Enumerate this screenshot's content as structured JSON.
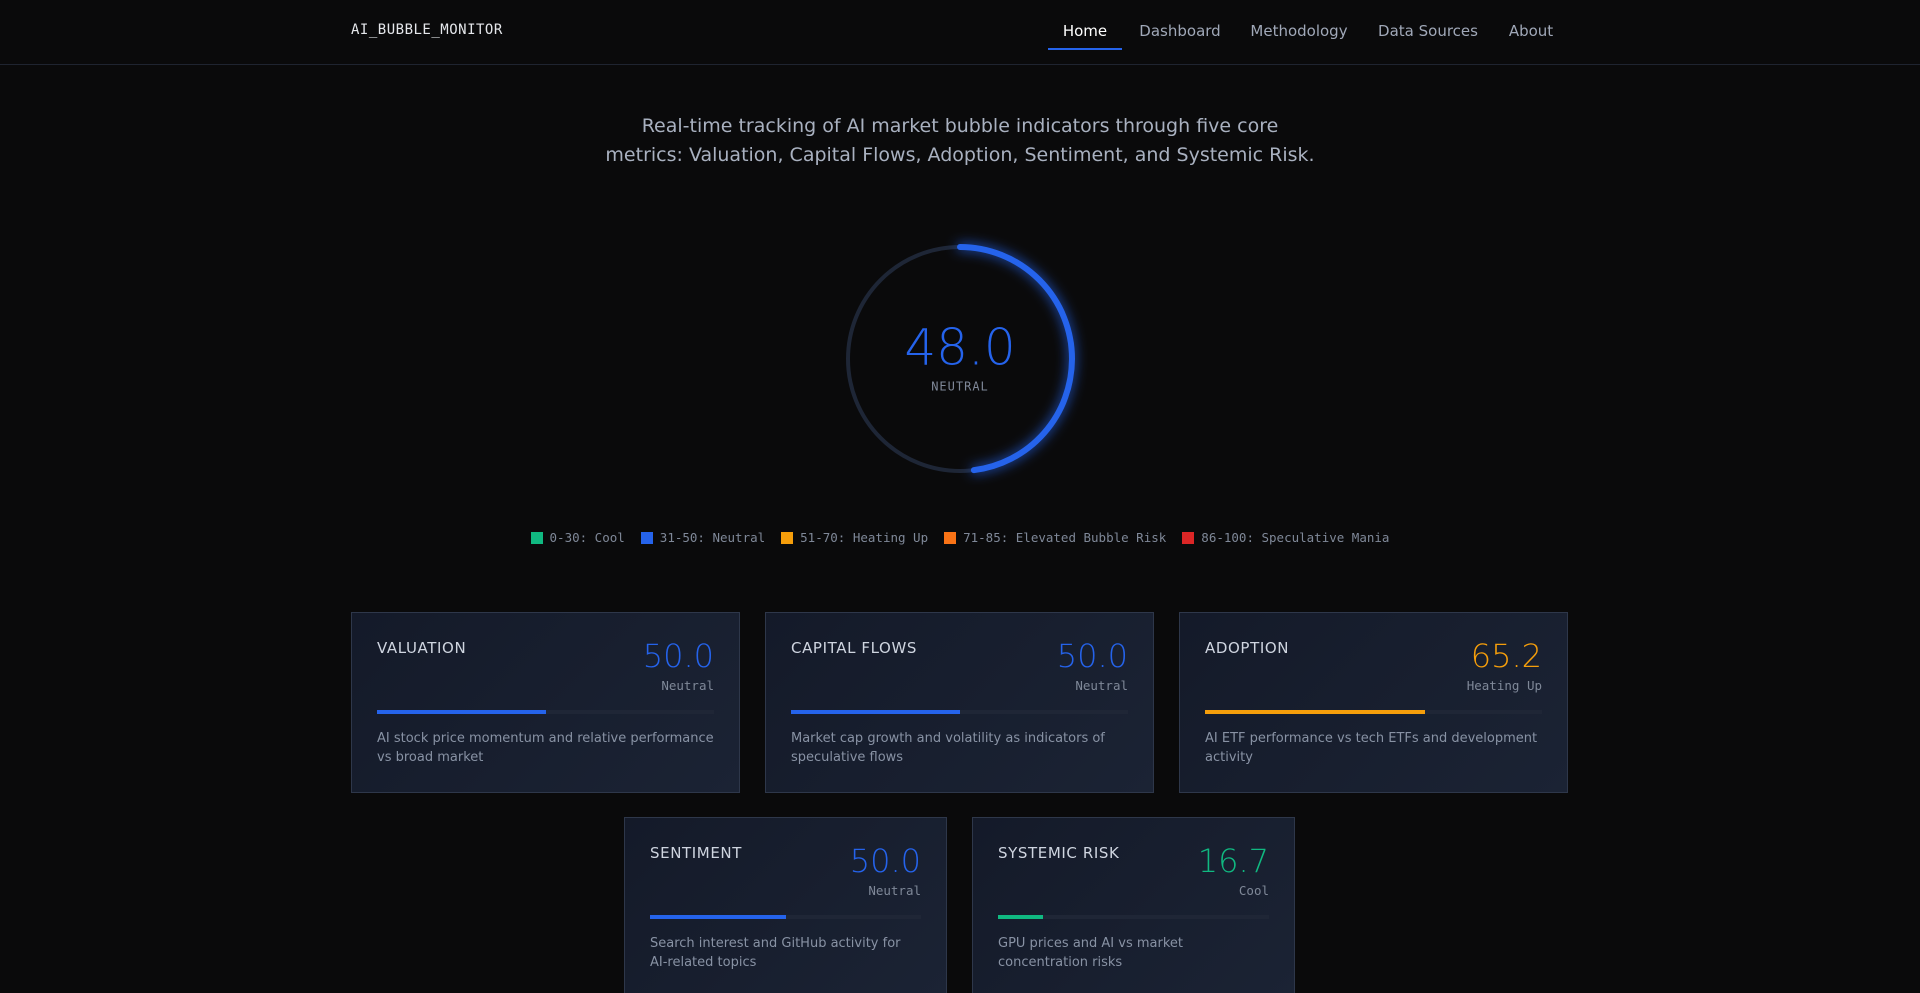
{
  "nav": {
    "logo": "AI_BUBBLE_MONITOR",
    "links": [
      "Home",
      "Dashboard",
      "Methodology",
      "Data Sources",
      "About"
    ],
    "active": 0
  },
  "intro": {
    "lines": [
      "Real-time tracking of AI market bubble indicators through five core",
      "metrics: Valuation, Capital Flows, Adoption, Sentiment, and Systemic Risk."
    ]
  },
  "gauge": {
    "score": {
      "value": 48,
      "label": "48.0"
    },
    "status": "NEUTRAL",
    "color": "#2563eb",
    "range": [
      0,
      100
    ]
  },
  "legend": [
    {
      "label": "0-30: Cool",
      "color": "#10b981"
    },
    {
      "label": "31-50: Neutral",
      "color": "#2563eb"
    },
    {
      "label": "51-70: Heating Up",
      "color": "#f59e0b"
    },
    {
      "label": "71-85: Elevated Bubble Risk",
      "color": "#f97316"
    },
    {
      "label": "86-100: Speculative Mania",
      "color": "#dc2626"
    }
  ],
  "cards": [
    {
      "title": "VALUATION",
      "score": {
        "value": 50,
        "label": "50.0"
      },
      "status": "Neutral",
      "color": "#2563eb",
      "description": "AI stock price momentum and relative performance vs broad market"
    },
    {
      "title": "CAPITAL FLOWS",
      "score": {
        "value": 50,
        "label": "50.0"
      },
      "status": "Neutral",
      "color": "#2563eb",
      "description": "Market cap growth and volatility as indicators of speculative flows"
    },
    {
      "title": "ADOPTION",
      "score": {
        "value": 65.2,
        "label": "65.2"
      },
      "status": "Heating Up",
      "color": "#f59e0b",
      "description": "AI ETF performance vs tech ETFs and development activity"
    },
    {
      "title": "SENTIMENT",
      "score": {
        "value": 50,
        "label": "50.0"
      },
      "status": "Neutral",
      "color": "#2563eb",
      "description": "Search interest and GitHub activity for AI-related topics"
    },
    {
      "title": "SYSTEMIC RISK",
      "score": {
        "value": 16.7,
        "label": "16.7"
      },
      "status": "Cool",
      "color": "#10b981",
      "description": "GPU prices and AI vs market concentration risks"
    }
  ]
}
